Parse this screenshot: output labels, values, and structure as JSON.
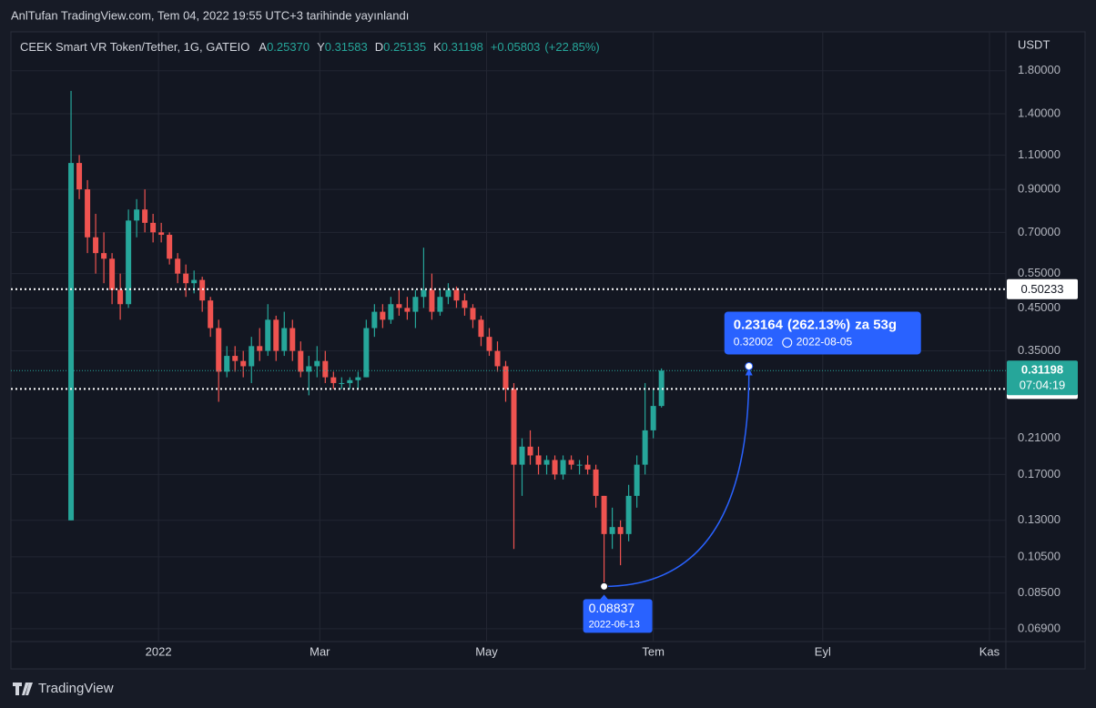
{
  "header": "AnlTufan TradingView.com, Tem 04, 2022 19:55 UTC+3 tarihinde yayınlandı",
  "footer": "TradingView",
  "chart_data": {
    "type": "candlestick",
    "legend": {
      "symbol": "CEEK Smart VR Token/Tether, 1G, GATEIO",
      "fields": [
        {
          "name": "A",
          "value": 0.2537,
          "label": "0.25370"
        },
        {
          "name": "Y",
          "value": 0.31583,
          "label": "0.31583"
        },
        {
          "name": "D",
          "value": 0.25135,
          "label": "0.25135"
        },
        {
          "name": "K",
          "value": 0.31198,
          "label": "0.31198"
        }
      ],
      "change": {
        "value": 0.05803,
        "label": "+0.05803"
      },
      "change_pct": {
        "value": 22.85,
        "label": "(+22.85%)"
      }
    },
    "y_axis_label": "USDT",
    "log_scale": true,
    "grid": true,
    "up_color": "#26a69a",
    "down_color": "#ef5350",
    "ylim": [
      0.064,
      2.26
    ],
    "yticks": [
      {
        "value": 1.8,
        "label": "1.80000"
      },
      {
        "value": 1.4,
        "label": "1.40000"
      },
      {
        "value": 1.1,
        "label": "1.10000"
      },
      {
        "value": 0.9,
        "label": "0.90000"
      },
      {
        "value": 0.7,
        "label": "0.70000"
      },
      {
        "value": 0.55,
        "label": "0.55000"
      },
      {
        "value": 0.45,
        "label": "0.45000"
      },
      {
        "value": 0.35,
        "label": "0.35000"
      },
      {
        "value": 0.21,
        "label": "0.21000"
      },
      {
        "value": 0.17,
        "label": "0.17000"
      },
      {
        "value": 0.13,
        "label": "0.13000"
      },
      {
        "value": 0.105,
        "label": "0.10500"
      },
      {
        "value": 0.085,
        "label": "0.08500"
      },
      {
        "value": 0.069,
        "label": "0.06900"
      }
    ],
    "xlim": [
      "2021-11-08",
      "2022-11-07"
    ],
    "xticks": [
      {
        "value": "2022-01-01",
        "label": "2022"
      },
      {
        "value": "2022-03-01",
        "label": "Mar"
      },
      {
        "value": "2022-05-01",
        "label": "May"
      },
      {
        "value": "2022-07-01",
        "label": "Tem"
      },
      {
        "value": "2022-09-01",
        "label": "Eyl"
      },
      {
        "value": "2022-11-01",
        "label": "Kas"
      }
    ],
    "x": [
      "2021-11-30",
      "2021-12-03",
      "2021-12-06",
      "2021-12-09",
      "2021-12-12",
      "2021-12-15",
      "2021-12-18",
      "2021-12-21",
      "2021-12-24",
      "2021-12-27",
      "2021-12-30",
      "2022-01-02",
      "2022-01-05",
      "2022-01-08",
      "2022-01-11",
      "2022-01-14",
      "2022-01-17",
      "2022-01-20",
      "2022-01-23",
      "2022-01-26",
      "2022-01-29",
      "2022-02-01",
      "2022-02-04",
      "2022-02-07",
      "2022-02-10",
      "2022-02-13",
      "2022-02-16",
      "2022-02-19",
      "2022-02-22",
      "2022-02-25",
      "2022-02-28",
      "2022-03-03",
      "2022-03-06",
      "2022-03-09",
      "2022-03-12",
      "2022-03-15",
      "2022-03-18",
      "2022-03-21",
      "2022-03-24",
      "2022-03-27",
      "2022-03-30",
      "2022-04-02",
      "2022-04-05",
      "2022-04-08",
      "2022-04-11",
      "2022-04-14",
      "2022-04-17",
      "2022-04-20",
      "2022-04-23",
      "2022-04-26",
      "2022-04-29",
      "2022-05-02",
      "2022-05-05",
      "2022-05-08",
      "2022-05-11",
      "2022-05-14",
      "2022-05-17",
      "2022-05-20",
      "2022-05-23",
      "2022-05-26",
      "2022-05-29",
      "2022-06-01",
      "2022-06-04",
      "2022-06-07",
      "2022-06-10",
      "2022-06-13",
      "2022-06-16",
      "2022-06-19",
      "2022-06-22",
      "2022-06-25",
      "2022-06-28",
      "2022-07-01",
      "2022-07-04"
    ],
    "open": [
      0.13,
      1.05,
      0.9,
      0.68,
      0.62,
      0.6,
      0.5,
      0.46,
      0.75,
      0.8,
      0.74,
      0.7,
      0.69,
      0.6,
      0.55,
      0.52,
      0.53,
      0.47,
      0.4,
      0.31,
      0.34,
      0.33,
      0.32,
      0.36,
      0.35,
      0.42,
      0.35,
      0.4,
      0.35,
      0.31,
      0.32,
      0.33,
      0.3,
      0.29,
      0.29,
      0.295,
      0.3,
      0.4,
      0.44,
      0.42,
      0.46,
      0.45,
      0.44,
      0.48,
      0.5,
      0.44,
      0.48,
      0.5,
      0.47,
      0.45,
      0.42,
      0.38,
      0.35,
      0.32,
      0.28,
      0.18,
      0.2,
      0.19,
      0.18,
      0.185,
      0.17,
      0.185,
      0.18,
      0.18,
      0.175,
      0.15,
      0.12,
      0.125,
      0.12,
      0.15,
      0.18,
      0.22,
      0.2537
    ],
    "high": [
      1.6,
      1.1,
      0.95,
      0.78,
      0.7,
      0.62,
      0.55,
      0.8,
      0.85,
      0.9,
      0.78,
      0.74,
      0.7,
      0.62,
      0.58,
      0.56,
      0.54,
      0.48,
      0.42,
      0.36,
      0.36,
      0.35,
      0.38,
      0.4,
      0.46,
      0.43,
      0.44,
      0.42,
      0.37,
      0.34,
      0.36,
      0.35,
      0.31,
      0.3,
      0.3,
      0.31,
      0.42,
      0.46,
      0.46,
      0.48,
      0.5,
      0.48,
      0.5,
      0.64,
      0.55,
      0.5,
      0.52,
      0.51,
      0.49,
      0.46,
      0.43,
      0.4,
      0.37,
      0.33,
      0.29,
      0.21,
      0.22,
      0.2,
      0.19,
      0.19,
      0.19,
      0.19,
      0.185,
      0.19,
      0.18,
      0.15,
      0.14,
      0.13,
      0.16,
      0.19,
      0.29,
      0.28,
      0.31583
    ],
    "low": [
      0.13,
      0.85,
      0.62,
      0.55,
      0.52,
      0.46,
      0.42,
      0.45,
      0.68,
      0.7,
      0.66,
      0.66,
      0.58,
      0.52,
      0.48,
      0.49,
      0.44,
      0.38,
      0.26,
      0.3,
      0.31,
      0.3,
      0.29,
      0.33,
      0.34,
      0.33,
      0.34,
      0.33,
      0.3,
      0.27,
      0.3,
      0.29,
      0.28,
      0.28,
      0.28,
      0.28,
      0.3,
      0.38,
      0.4,
      0.41,
      0.43,
      0.42,
      0.4,
      0.45,
      0.42,
      0.43,
      0.46,
      0.45,
      0.43,
      0.4,
      0.36,
      0.34,
      0.31,
      0.26,
      0.11,
      0.15,
      0.18,
      0.17,
      0.17,
      0.165,
      0.165,
      0.175,
      0.17,
      0.17,
      0.14,
      0.08837,
      0.11,
      0.1,
      0.115,
      0.14,
      0.17,
      0.21,
      0.25135
    ],
    "close": [
      1.05,
      0.9,
      0.68,
      0.62,
      0.6,
      0.5,
      0.46,
      0.75,
      0.8,
      0.74,
      0.7,
      0.69,
      0.6,
      0.55,
      0.52,
      0.53,
      0.47,
      0.4,
      0.31,
      0.34,
      0.33,
      0.32,
      0.36,
      0.35,
      0.42,
      0.35,
      0.4,
      0.35,
      0.31,
      0.32,
      0.33,
      0.3,
      0.29,
      0.29,
      0.295,
      0.3,
      0.4,
      0.44,
      0.42,
      0.46,
      0.45,
      0.44,
      0.48,
      0.5,
      0.44,
      0.48,
      0.5,
      0.47,
      0.45,
      0.42,
      0.38,
      0.35,
      0.32,
      0.28,
      0.18,
      0.2,
      0.19,
      0.18,
      0.185,
      0.17,
      0.185,
      0.18,
      0.18,
      0.175,
      0.15,
      0.12,
      0.125,
      0.12,
      0.15,
      0.18,
      0.22,
      0.2537,
      0.31198
    ],
    "hlines": [
      0.50233,
      0.28027
    ],
    "price_line": {
      "value": 0.31198,
      "countdown": "07:04:19"
    },
    "measure": {
      "from": {
        "x": "2022-06-13",
        "value": 0.08837
      },
      "to": {
        "x": "2022-08-05",
        "value": 0.32002
      },
      "change": 0.23164,
      "pct": {
        "value": 262.13,
        "label": "(262.13%)"
      },
      "duration": "za 53g"
    }
  }
}
